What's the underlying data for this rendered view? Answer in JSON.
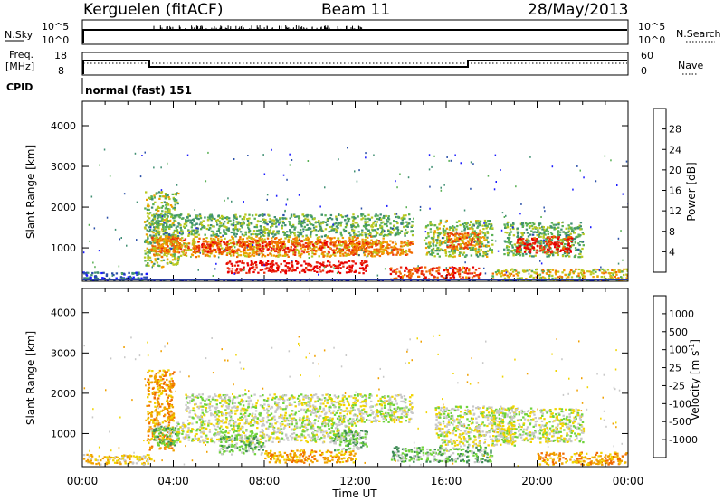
{
  "header": {
    "station": "Kerguelen (fitACF)",
    "beam": "Beam 11",
    "date": "28/May/2013"
  },
  "strips": {
    "nsky_label": "N.Sky",
    "nsearch_label": "N.Search",
    "nsky_ticks": [
      "10^5",
      "10^0"
    ],
    "freq_label_1": "Freq.",
    "freq_label_2": "[MHz]",
    "freq_ticks": [
      "18",
      "8"
    ],
    "nave_label": "Nave",
    "nave_ticks": [
      "60",
      "0"
    ],
    "cpid_label": "CPID",
    "cpid_value": "normal (fast) 151"
  },
  "colors": {
    "power": [
      "#1a1aff",
      "#2a4fa8",
      "#3f8f72",
      "#59b054",
      "#b8c81e",
      "#f0a000",
      "#f06a00",
      "#e83010",
      "#e80000"
    ],
    "velocity": [
      "#2222cc",
      "#3a6db4",
      "#3d8a55",
      "#6ed33a",
      "#c8c8c8",
      "#f0d400",
      "#f0a000",
      "#f06a00",
      "#ee0000"
    ]
  },
  "chart_data": [
    {
      "type": "heatmap",
      "name": "power",
      "xlabel": "",
      "ylabel": "Slant Range [km]",
      "xlim": [
        "00:00",
        "24:00"
      ],
      "ylim": [
        180,
        4600
      ],
      "yticks": [
        "1000",
        "2000",
        "3000",
        "4000"
      ],
      "colorbar": {
        "label": "Power [dB]",
        "range": [
          0,
          32
        ],
        "ticks": [
          "4",
          "8",
          "12",
          "16",
          "20",
          "24",
          "28"
        ]
      },
      "regions": [
        {
          "t0": 0.0,
          "t1": 2.8,
          "r0": 250,
          "r1": 420,
          "level": 6
        },
        {
          "t0": 2.7,
          "t1": 4.2,
          "r0": 550,
          "r1": 2400,
          "level": 14
        },
        {
          "t0": 3.0,
          "t1": 4.5,
          "r0": 900,
          "r1": 1300,
          "level": 24
        },
        {
          "t0": 3.0,
          "t1": 14.5,
          "r0": 1300,
          "r1": 1850,
          "level": 12
        },
        {
          "t0": 3.0,
          "t1": 13.2,
          "r0": 800,
          "r1": 1300,
          "level": 20
        },
        {
          "t0": 5.0,
          "t1": 13.0,
          "r0": 900,
          "r1": 1200,
          "level": 26
        },
        {
          "t0": 6.3,
          "t1": 12.5,
          "r0": 400,
          "r1": 700,
          "level": 30
        },
        {
          "t0": 11.5,
          "t1": 14.5,
          "r0": 850,
          "r1": 1200,
          "level": 22
        },
        {
          "t0": 13.5,
          "t1": 17.5,
          "r0": 250,
          "r1": 550,
          "level": 26
        },
        {
          "t0": 15.0,
          "t1": 18.0,
          "r0": 800,
          "r1": 1700,
          "level": 14
        },
        {
          "t0": 16.0,
          "t1": 17.5,
          "r0": 1000,
          "r1": 1400,
          "level": 24
        },
        {
          "t0": 18.5,
          "t1": 22.0,
          "r0": 800,
          "r1": 1650,
          "level": 12
        },
        {
          "t0": 19.0,
          "t1": 21.5,
          "r0": 900,
          "r1": 1300,
          "level": 28
        },
        {
          "t0": 18.0,
          "t1": 24.0,
          "r0": 200,
          "r1": 500,
          "level": 18
        },
        {
          "t0": 0.0,
          "t1": 24.0,
          "r0": 180,
          "r1": 230,
          "level": 4
        }
      ]
    },
    {
      "type": "heatmap",
      "name": "velocity",
      "xlabel": "Time UT",
      "ylabel": "Slant Range [km]",
      "xlim": [
        "00:00",
        "24:00"
      ],
      "xticks": [
        "00:00",
        "04:00",
        "08:00",
        "12:00",
        "16:00",
        "20:00",
        "00:00"
      ],
      "ylim": [
        180,
        4600
      ],
      "yticks": [
        "1000",
        "2000",
        "3000",
        "4000"
      ],
      "colorbar": {
        "label": "Velocity [m s",
        "label_sup": "-1",
        "label_end": "]",
        "ticks": [
          "1000",
          "500",
          "100",
          "25",
          "-25",
          "-100",
          "-500",
          "-1000"
        ]
      },
      "regions": [
        {
          "t0": 0.0,
          "t1": 3.0,
          "r0": 250,
          "r1": 500,
          "level": 5
        },
        {
          "t0": 2.8,
          "t1": 4.0,
          "r0": 600,
          "r1": 2600,
          "level": 6
        },
        {
          "t0": 3.0,
          "t1": 4.2,
          "r0": 700,
          "r1": 1200,
          "level": 3
        },
        {
          "t0": 4.5,
          "t1": 14.5,
          "r0": 1300,
          "r1": 2000,
          "level": 4
        },
        {
          "t0": 4.0,
          "t1": 12.0,
          "r0": 800,
          "r1": 1300,
          "level": 4
        },
        {
          "t0": 6.0,
          "t1": 8.0,
          "r0": 500,
          "r1": 1000,
          "level": 3
        },
        {
          "t0": 11.0,
          "t1": 12.5,
          "r0": 600,
          "r1": 1100,
          "level": 3
        },
        {
          "t0": 13.5,
          "t1": 18.0,
          "r0": 300,
          "r1": 700,
          "level": 3
        },
        {
          "t0": 15.5,
          "t1": 19.0,
          "r0": 700,
          "r1": 1700,
          "level": 4
        },
        {
          "t0": 18.0,
          "t1": 22.0,
          "r0": 800,
          "r1": 1650,
          "level": 4
        },
        {
          "t0": 20.0,
          "t1": 24.0,
          "r0": 250,
          "r1": 550,
          "level": 6
        },
        {
          "t0": 8.0,
          "t1": 12.0,
          "r0": 300,
          "r1": 600,
          "level": 6
        }
      ]
    }
  ]
}
